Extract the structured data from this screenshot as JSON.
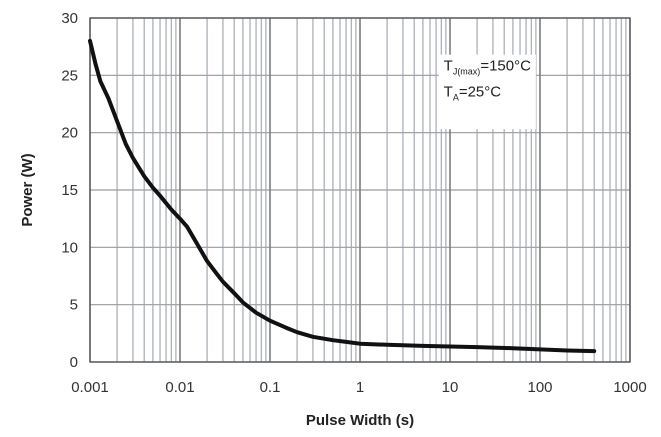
{
  "chart_data": {
    "type": "line",
    "title": "",
    "xlabel": "Pulse Width (s)",
    "ylabel": "Power (W)",
    "x_scale": "log",
    "xlim": [
      0.001,
      1000
    ],
    "ylim": [
      0,
      30
    ],
    "grid": true,
    "x_ticks": [
      0.001,
      0.01,
      0.1,
      1,
      10,
      100,
      1000
    ],
    "x_tick_labels": [
      "0.001",
      "0.01",
      "0.1",
      "1",
      "10",
      "100",
      "1000"
    ],
    "y_ticks": [
      0,
      5,
      10,
      15,
      20,
      25,
      30
    ],
    "y_tick_labels": [
      "0",
      "5",
      "10",
      "15",
      "20",
      "25",
      "30"
    ],
    "annotations": [
      {
        "main": "T",
        "sub": "J(max)",
        "rest": "=150°C"
      },
      {
        "main": "T",
        "sub": "A",
        "rest": "=25°C"
      }
    ],
    "series": [
      {
        "color": "#111111",
        "points": [
          [
            0.001,
            28.0
          ],
          [
            0.00115,
            26.0
          ],
          [
            0.0013,
            24.5
          ],
          [
            0.0016,
            23.0
          ],
          [
            0.002,
            21.0
          ],
          [
            0.0025,
            19.0
          ],
          [
            0.003,
            17.8
          ],
          [
            0.004,
            16.2
          ],
          [
            0.005,
            15.2
          ],
          [
            0.006,
            14.5
          ],
          [
            0.008,
            13.3
          ],
          [
            0.01,
            12.5
          ],
          [
            0.012,
            11.8
          ],
          [
            0.015,
            10.5
          ],
          [
            0.02,
            8.8
          ],
          [
            0.025,
            7.8
          ],
          [
            0.03,
            7.0
          ],
          [
            0.04,
            6.0
          ],
          [
            0.05,
            5.2
          ],
          [
            0.07,
            4.3
          ],
          [
            0.1,
            3.6
          ],
          [
            0.15,
            3.0
          ],
          [
            0.2,
            2.6
          ],
          [
            0.3,
            2.2
          ],
          [
            0.5,
            1.9
          ],
          [
            0.7,
            1.75
          ],
          [
            1,
            1.6
          ],
          [
            2,
            1.5
          ],
          [
            5,
            1.4
          ],
          [
            10,
            1.35
          ],
          [
            20,
            1.3
          ],
          [
            50,
            1.2
          ],
          [
            100,
            1.1
          ],
          [
            200,
            1.0
          ],
          [
            400,
            0.95
          ]
        ]
      }
    ]
  }
}
